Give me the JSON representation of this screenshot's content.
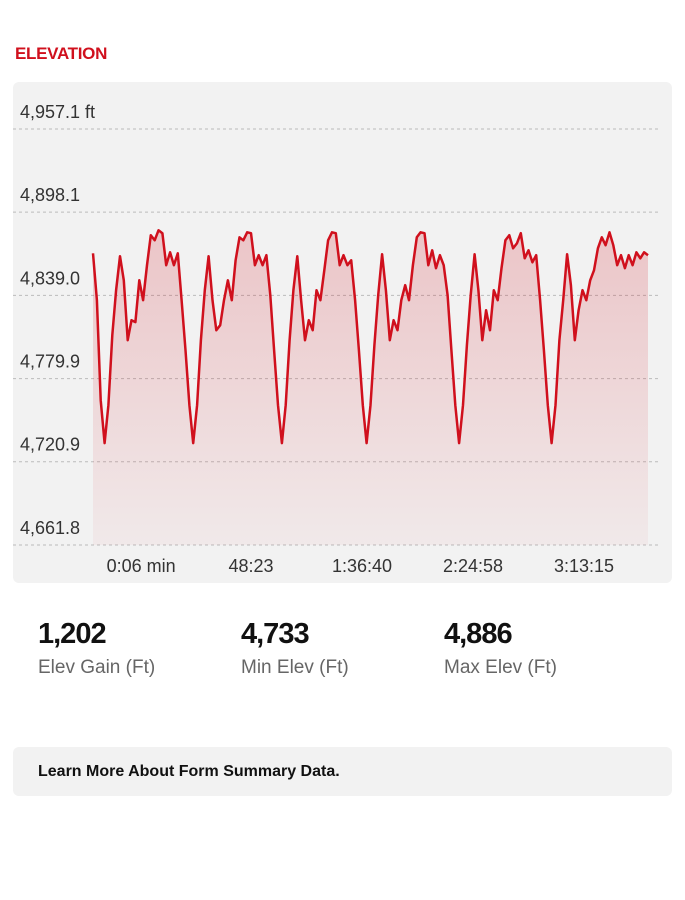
{
  "title": "ELEVATION",
  "chart_data": {
    "type": "line",
    "y_unit_label": "4,957.1 ft",
    "ylim": [
      4661.8,
      4957.1
    ],
    "yticks": [
      {
        "value": 4661.8,
        "label": "4,661.8"
      },
      {
        "value": 4720.9,
        "label": "4,720.9"
      },
      {
        "value": 4779.9,
        "label": "4,779.9"
      },
      {
        "value": 4839.0,
        "label": "4,839.0"
      },
      {
        "value": 4898.1,
        "label": "4,898.1"
      }
    ],
    "xlim": [
      0,
      144
    ],
    "xticks": [
      {
        "value": 12.5,
        "label": "0:06 min"
      },
      {
        "value": 41.0,
        "label": "48:23"
      },
      {
        "value": 69.8,
        "label": "1:36:40"
      },
      {
        "value": 98.6,
        "label": "2:24:58"
      },
      {
        "value": 127.4,
        "label": "3:13:15"
      }
    ],
    "grid": true,
    "series": [
      {
        "color": "#d0101d",
        "values": [
          4868.9,
          4835.6,
          4764.6,
          4734.1,
          4761.1,
          4810.7,
          4842.7,
          4866.8,
          4849.7,
          4807.2,
          4821.4,
          4820.0,
          4849.7,
          4835.6,
          4860.4,
          4881.7,
          4878.1,
          4885.2,
          4883.1,
          4860.4,
          4869.6,
          4860.4,
          4868.9,
          4835.6,
          4800.1,
          4761.1,
          4734.1,
          4761.1,
          4807.2,
          4842.7,
          4866.8,
          4835.6,
          4814.3,
          4817.8,
          4835.6,
          4849.7,
          4835.6,
          4863.9,
          4880.2,
          4878.1,
          4883.8,
          4883.1,
          4860.4,
          4867.5,
          4860.4,
          4867.5,
          4839.1,
          4800.1,
          4761.1,
          4734.1,
          4761.1,
          4807.2,
          4842.7,
          4866.8,
          4835.6,
          4807.2,
          4821.4,
          4814.3,
          4842.7,
          4835.6,
          4856.8,
          4878.1,
          4883.8,
          4883.1,
          4860.4,
          4867.5,
          4860.4,
          4863.9,
          4835.6,
          4800.1,
          4761.1,
          4734.1,
          4761.1,
          4803.6,
          4839.1,
          4868.2,
          4842.7,
          4807.2,
          4821.4,
          4814.3,
          4835.6,
          4846.2,
          4835.6,
          4860.4,
          4880.2,
          4883.8,
          4883.1,
          4860.4,
          4871.0,
          4858.3,
          4867.5,
          4860.4,
          4839.1,
          4800.1,
          4761.1,
          4734.1,
          4761.1,
          4803.6,
          4839.1,
          4868.2,
          4842.7,
          4807.2,
          4828.5,
          4814.3,
          4842.7,
          4835.6,
          4858.3,
          4878.1,
          4881.7,
          4872.4,
          4876.0,
          4883.1,
          4865.3,
          4871.0,
          4862.5,
          4867.5,
          4835.6,
          4800.1,
          4761.1,
          4734.1,
          4761.1,
          4807.2,
          4835.6,
          4868.2,
          4846.2,
          4807.2,
          4828.5,
          4842.7,
          4835.6,
          4849.7,
          4856.8,
          4872.4,
          4880.2,
          4874.6,
          4883.8,
          4874.6,
          4860.4,
          4867.5,
          4858.3,
          4867.5,
          4860.4,
          4869.6,
          4865.3,
          4869.6,
          4867.5
        ]
      }
    ]
  },
  "stats": [
    {
      "value": "1,202",
      "label": "Elev Gain (Ft)"
    },
    {
      "value": "4,733",
      "label": "Min Elev (Ft)"
    },
    {
      "value": "4,886",
      "label": "Max Elev (Ft)"
    }
  ],
  "footer_link": "Learn More About Form Summary Data."
}
